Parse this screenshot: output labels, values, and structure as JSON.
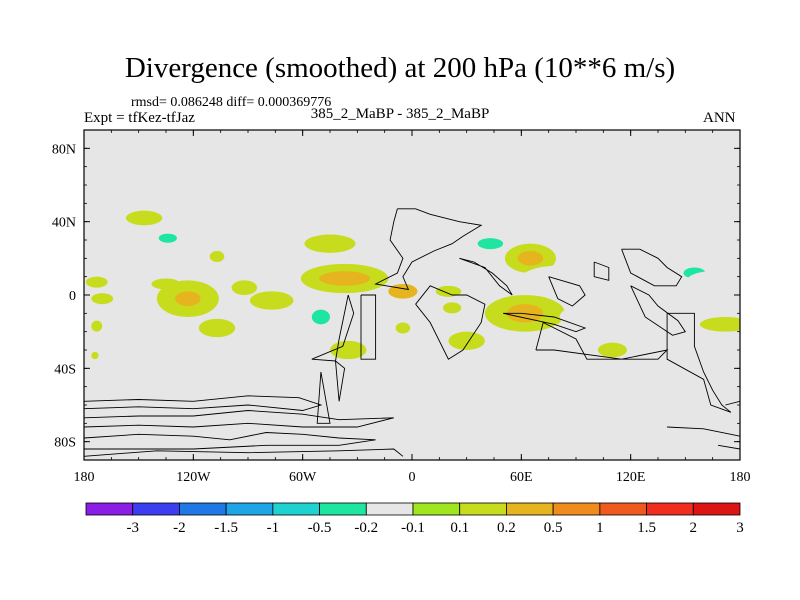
{
  "header": {
    "title": "Divergence (smoothed) at 200 hPa (10**6 m/s)",
    "stats": "rmsd= 0.086248 diff= 0.000369776",
    "experiment": "Expt = tfKez-tfJaz",
    "case": "385_2_MaBP - 385_2_MaBP",
    "season": "ANN"
  },
  "chart_data": {
    "type": "heatmap",
    "title": "Divergence (smoothed) at 200 hPa (10**6 m/s)",
    "xlim": [
      -180,
      180
    ],
    "ylim": [
      -90,
      90
    ],
    "x_ticks": [
      {
        "value": -180,
        "label": "180"
      },
      {
        "value": -120,
        "label": "120W"
      },
      {
        "value": -60,
        "label": "60W"
      },
      {
        "value": 0,
        "label": "0"
      },
      {
        "value": 60,
        "label": "60E"
      },
      {
        "value": 120,
        "label": "120E"
      },
      {
        "value": 180,
        "label": "180"
      }
    ],
    "y_ticks": [
      {
        "value": 80,
        "label": "80N"
      },
      {
        "value": 40,
        "label": "40N"
      },
      {
        "value": 0,
        "label": "0"
      },
      {
        "value": -40,
        "label": "40S"
      },
      {
        "value": -80,
        "label": "80S"
      }
    ],
    "colorbar": {
      "labels": [
        "-3",
        "-2",
        "-1.5",
        "-1",
        "-0.5",
        "-0.2",
        "-0.1",
        "0.1",
        "0.2",
        "0.5",
        "1",
        "1.5",
        "2",
        "3"
      ],
      "colors": [
        "#8a1ee6",
        "#3c3cf0",
        "#1f78e6",
        "#1ea5e6",
        "#1ed2d2",
        "#1ee6a0",
        "#e6e6e6",
        "#a0e61e",
        "#c8dc1e",
        "#e6b41e",
        "#f08c1e",
        "#f05a1e",
        "#f02d1e",
        "#dc1414"
      ]
    },
    "background_color": "#e6e6e6",
    "regions": [
      {
        "lon": -147,
        "lat": 42,
        "rx": 10,
        "ry": 4,
        "value": 0.15
      },
      {
        "lon": -134,
        "lat": 31,
        "rx": 13,
        "ry": 6,
        "value": -0.15
      },
      {
        "lon": -134,
        "lat": 31,
        "rx": 5,
        "ry": 2.5,
        "value": -0.3
      },
      {
        "lon": -107,
        "lat": 21,
        "rx": 4,
        "ry": 3,
        "value": 0.15
      },
      {
        "lon": -66,
        "lat": 30,
        "rx": 12,
        "ry": 6,
        "value": -0.15
      },
      {
        "lon": -45,
        "lat": 28,
        "rx": 14,
        "ry": 5,
        "value": 0.15
      },
      {
        "lon": -8,
        "lat": 35,
        "rx": 12,
        "ry": 7,
        "value": -0.15
      },
      {
        "lon": 43,
        "lat": 28,
        "rx": 16,
        "ry": 7,
        "value": -0.15
      },
      {
        "lon": 43,
        "lat": 28,
        "rx": 7,
        "ry": 3,
        "value": -0.3
      },
      {
        "lon": 65,
        "lat": 20,
        "rx": 14,
        "ry": 8,
        "value": 0.15
      },
      {
        "lon": 65,
        "lat": 20,
        "rx": 7,
        "ry": 4,
        "value": 0.3
      },
      {
        "lon": 145,
        "lat": 22,
        "rx": 16,
        "ry": 9,
        "value": -0.15
      },
      {
        "lon": 155,
        "lat": 12,
        "rx": 6,
        "ry": 3,
        "value": -0.3
      },
      {
        "lon": -173,
        "lat": 7,
        "rx": 6,
        "ry": 3,
        "value": 0.15
      },
      {
        "lon": -135,
        "lat": 6,
        "rx": 8,
        "ry": 3,
        "value": 0.15
      },
      {
        "lon": -92,
        "lat": 4,
        "rx": 7,
        "ry": 4,
        "value": 0.15
      },
      {
        "lon": -37,
        "lat": 9,
        "rx": 24,
        "ry": 8,
        "value": 0.15
      },
      {
        "lon": -37,
        "lat": 9,
        "rx": 14,
        "ry": 4,
        "value": 0.5
      },
      {
        "lon": -5,
        "lat": 2,
        "rx": 8,
        "ry": 4,
        "value": 0.3
      },
      {
        "lon": 20,
        "lat": 2,
        "rx": 7,
        "ry": 3,
        "value": 0.15
      },
      {
        "lon": 80,
        "lat": 7,
        "rx": 22,
        "ry": 9,
        "value": -0.15
      },
      {
        "lon": 120,
        "lat": 10,
        "rx": 26,
        "ry": 9,
        "value": -0.15
      },
      {
        "lon": 165,
        "lat": 8,
        "rx": 14,
        "ry": 5,
        "value": -0.15
      },
      {
        "lon": -170,
        "lat": -2,
        "rx": 6,
        "ry": 3,
        "value": 0.15
      },
      {
        "lon": -123,
        "lat": -2,
        "rx": 17,
        "ry": 10,
        "value": 0.15
      },
      {
        "lon": -123,
        "lat": -2,
        "rx": 7,
        "ry": 4,
        "value": 0.3
      },
      {
        "lon": -77,
        "lat": -3,
        "rx": 12,
        "ry": 5,
        "value": 0.15
      },
      {
        "lon": -52,
        "lat": -12,
        "rx": 12,
        "ry": 9,
        "value": -0.15
      },
      {
        "lon": -50,
        "lat": -12,
        "rx": 5,
        "ry": 4,
        "value": -0.3
      },
      {
        "lon": -107,
        "lat": -18,
        "rx": 10,
        "ry": 5,
        "value": 0.15
      },
      {
        "lon": 5,
        "lat": -8,
        "rx": 5,
        "ry": 3,
        "value": -0.15
      },
      {
        "lon": 22,
        "lat": -7,
        "rx": 5,
        "ry": 3,
        "value": 0.15
      },
      {
        "lon": 62,
        "lat": -10,
        "rx": 22,
        "ry": 10,
        "value": 0.15
      },
      {
        "lon": 62,
        "lat": -10,
        "rx": 10,
        "ry": 5,
        "value": 0.3
      },
      {
        "lon": 103,
        "lat": -12,
        "rx": 22,
        "ry": 8,
        "value": -0.15
      },
      {
        "lon": 172,
        "lat": -16,
        "rx": 14,
        "ry": 4,
        "value": 0.15
      },
      {
        "lon": -173,
        "lat": -17,
        "rx": 3,
        "ry": 3,
        "value": 0.15
      },
      {
        "lon": -5,
        "lat": -18,
        "rx": 4,
        "ry": 3,
        "value": 0.15
      },
      {
        "lon": 30,
        "lat": -25,
        "rx": 10,
        "ry": 5,
        "value": 0.15
      },
      {
        "lon": -90,
        "lat": -31,
        "rx": 12,
        "ry": 8,
        "value": -0.15
      },
      {
        "lon": -35,
        "lat": -30,
        "rx": 10,
        "ry": 5,
        "value": 0.15
      },
      {
        "lon": 90,
        "lat": -30,
        "rx": 12,
        "ry": 5,
        "value": -0.15
      },
      {
        "lon": 110,
        "lat": -30,
        "rx": 8,
        "ry": 4,
        "value": 0.15
      },
      {
        "lon": -174,
        "lat": -33,
        "rx": 2,
        "ry": 2,
        "value": 0.15
      }
    ],
    "outlines": [
      [
        [
          -8,
          47
        ],
        [
          2,
          47
        ],
        [
          10,
          44
        ],
        [
          26,
          40
        ],
        [
          38,
          38
        ],
        [
          28,
          32
        ],
        [
          22,
          28
        ],
        [
          12,
          24
        ],
        [
          0,
          18
        ],
        [
          -5,
          10
        ],
        [
          -2,
          3
        ],
        [
          -20,
          6
        ],
        [
          -8,
          12
        ],
        [
          -5,
          20
        ],
        [
          -12,
          30
        ],
        [
          -10,
          40
        ],
        [
          -8,
          47
        ]
      ],
      [
        [
          26,
          20
        ],
        [
          40,
          15
        ],
        [
          48,
          5
        ],
        [
          55,
          0
        ],
        [
          52,
          5
        ],
        [
          44,
          12
        ],
        [
          34,
          18
        ],
        [
          26,
          20
        ]
      ],
      [
        [
          -28,
          0
        ],
        [
          -20,
          0
        ],
        [
          -20,
          -35
        ],
        [
          -28,
          -35
        ],
        [
          -28,
          0
        ]
      ],
      [
        [
          -35,
          0
        ],
        [
          -32,
          -10
        ],
        [
          -38,
          -28
        ],
        [
          -55,
          -35
        ],
        [
          -42,
          -36
        ],
        [
          -40,
          -24
        ],
        [
          -35,
          0
        ]
      ],
      [
        [
          -42,
          -36
        ],
        [
          -40,
          -58
        ],
        [
          -37,
          -40
        ],
        [
          -42,
          -36
        ]
      ],
      [
        [
          -50,
          -42
        ],
        [
          -52,
          -70
        ],
        [
          -45,
          -70
        ],
        [
          -50,
          -42
        ]
      ],
      [
        [
          2,
          -5
        ],
        [
          10,
          -15
        ],
        [
          20,
          -35
        ],
        [
          28,
          -30
        ],
        [
          38,
          -15
        ],
        [
          40,
          -5
        ],
        [
          30,
          0
        ],
        [
          22,
          0
        ],
        [
          10,
          5
        ],
        [
          2,
          -5
        ]
      ],
      [
        [
          50,
          -10
        ],
        [
          78,
          -16
        ],
        [
          90,
          -20
        ],
        [
          95,
          -18
        ],
        [
          78,
          -12
        ],
        [
          60,
          -10
        ],
        [
          50,
          -10
        ]
      ],
      [
        [
          68,
          -30
        ],
        [
          72,
          -15
        ],
        [
          90,
          -24
        ],
        [
          96,
          -35
        ],
        [
          135,
          -35
        ],
        [
          140,
          -30
        ],
        [
          115,
          -35
        ],
        [
          78,
          -30
        ],
        [
          68,
          -30
        ]
      ],
      [
        [
          140,
          -10
        ],
        [
          155,
          -10
        ],
        [
          155,
          -28
        ],
        [
          160,
          -42
        ],
        [
          165,
          -52
        ],
        [
          170,
          -60
        ],
        [
          175,
          -64
        ],
        [
          164,
          -60
        ],
        [
          160,
          -46
        ],
        [
          140,
          -35
        ],
        [
          140,
          -10
        ]
      ],
      [
        [
          120,
          5
        ],
        [
          130,
          0
        ],
        [
          135,
          -6
        ],
        [
          146,
          -14
        ],
        [
          150,
          -20
        ],
        [
          143,
          -22
        ],
        [
          128,
          -12
        ],
        [
          120,
          5
        ]
      ],
      [
        [
          115,
          25
        ],
        [
          125,
          25
        ],
        [
          135,
          20
        ],
        [
          140,
          15
        ],
        [
          148,
          10
        ],
        [
          145,
          5
        ],
        [
          133,
          5
        ],
        [
          120,
          12
        ],
        [
          115,
          25
        ]
      ],
      [
        [
          75,
          10
        ],
        [
          92,
          5
        ],
        [
          95,
          0
        ],
        [
          88,
          -6
        ],
        [
          80,
          -2
        ],
        [
          75,
          10
        ]
      ],
      [
        [
          100,
          18
        ],
        [
          108,
          15
        ],
        [
          108,
          8
        ],
        [
          100,
          10
        ],
        [
          100,
          18
        ]
      ],
      [
        [
          -180,
          -58
        ],
        [
          -150,
          -57
        ],
        [
          -120,
          -58
        ],
        [
          -90,
          -55
        ],
        [
          -62,
          -56
        ],
        [
          -50,
          -60
        ],
        [
          -60,
          -63
        ],
        [
          -90,
          -60
        ],
        [
          -120,
          -62
        ],
        [
          -150,
          -61
        ],
        [
          -180,
          -62
        ]
      ],
      [
        [
          -180,
          -67
        ],
        [
          -150,
          -66
        ],
        [
          -120,
          -66
        ],
        [
          -90,
          -63
        ],
        [
          -60,
          -65
        ],
        [
          -40,
          -68
        ],
        [
          -10,
          -67
        ],
        [
          -30,
          -72
        ],
        [
          -60,
          -72
        ],
        [
          -90,
          -70
        ],
        [
          -120,
          -72
        ],
        [
          -150,
          -71
        ],
        [
          -180,
          -72
        ]
      ],
      [
        [
          -180,
          -78
        ],
        [
          -150,
          -76
        ],
        [
          -120,
          -77
        ],
        [
          -100,
          -79
        ],
        [
          -80,
          -75
        ],
        [
          -60,
          -76
        ],
        [
          -40,
          -78
        ],
        [
          -20,
          -79
        ],
        [
          -40,
          -82
        ],
        [
          -80,
          -82
        ],
        [
          -120,
          -84
        ],
        [
          -180,
          -84
        ]
      ],
      [
        [
          -180,
          -88
        ],
        [
          -140,
          -85
        ],
        [
          -90,
          -86
        ],
        [
          -40,
          -85
        ],
        [
          -10,
          -84
        ],
        [
          -5,
          -88
        ]
      ],
      [
        [
          140,
          -72
        ],
        [
          160,
          -73
        ],
        [
          175,
          -76
        ],
        [
          180,
          -77
        ]
      ],
      [
        [
          168,
          -82
        ],
        [
          180,
          -84
        ]
      ],
      [
        [
          172,
          -60
        ],
        [
          180,
          -58
        ]
      ]
    ]
  }
}
